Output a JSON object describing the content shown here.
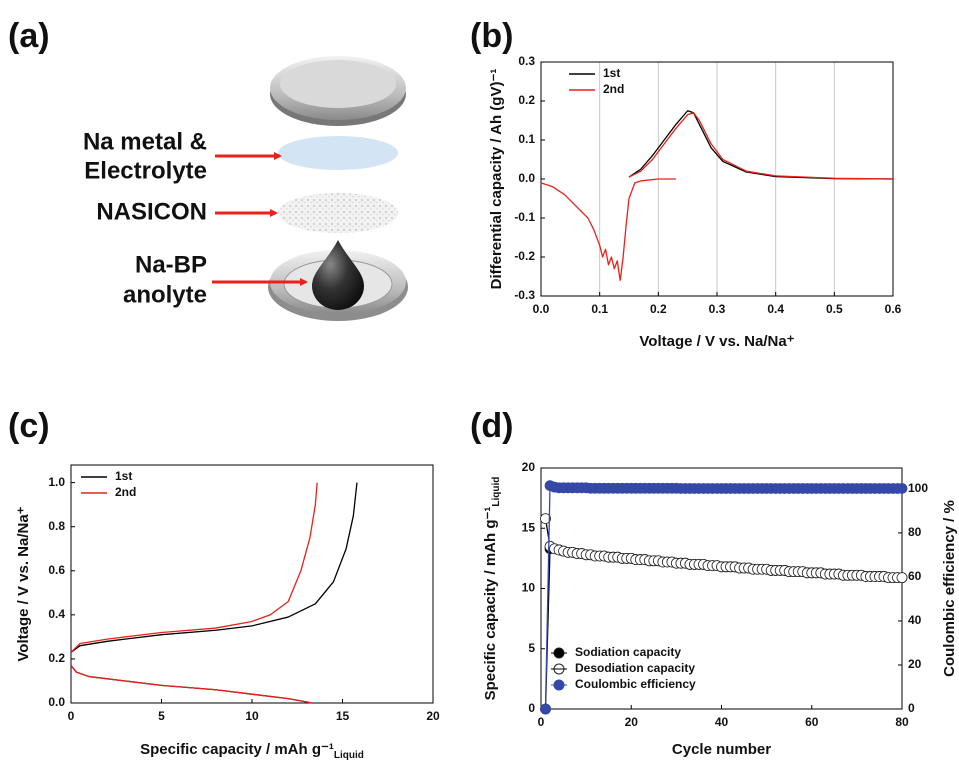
{
  "panel_labels": [
    "(a)",
    "(b)",
    "(c)",
    "(d)"
  ],
  "diagram": {
    "labels": [
      [
        "Na metal &",
        "Electrolyte"
      ],
      [
        "NASICON"
      ],
      [
        "Na-BP",
        "anolyte"
      ]
    ]
  },
  "chart_data": [
    {
      "type": "line",
      "xlabel": "Voltage / V vs. Na/Na⁺",
      "ylabel": "Differential capacity / Ah (gV)⁻¹",
      "xlim": [
        0,
        0.6
      ],
      "ylim": [
        -0.3,
        0.3
      ],
      "xticks": [
        {
          "value": 0,
          "label": "0.0"
        },
        0.1,
        0.2,
        0.3,
        0.4,
        0.5,
        0.6
      ],
      "yticks": [
        -0.3,
        -0.2,
        -0.1,
        {
          "value": 0,
          "label": "0.0"
        },
        0.1,
        0.2,
        0.3
      ],
      "grid": "x",
      "legend": "upper left",
      "series": [
        {
          "name": "1st",
          "color": "#000000",
          "x": [
            0.15,
            0.17,
            0.19,
            0.21,
            0.23,
            0.25,
            0.26,
            0.27,
            0.29,
            0.31,
            0.35,
            0.4,
            0.5,
            0.6
          ],
          "values": [
            0.005,
            0.025,
            0.06,
            0.1,
            0.14,
            0.175,
            0.17,
            0.14,
            0.08,
            0.045,
            0.018,
            0.006,
            0.001,
            0.0
          ]
        },
        {
          "name": "2nd",
          "color": "#e8211b",
          "x": [
            0,
            0.02,
            0.04,
            0.06,
            0.08,
            0.09,
            0.1,
            0.105,
            0.11,
            0.115,
            0.12,
            0.125,
            0.13,
            0.135,
            0.14,
            0.145,
            0.15,
            0.16,
            0.17,
            0.2,
            0.23,
            null,
            0.15,
            0.17,
            0.19,
            0.21,
            0.23,
            0.25,
            0.26,
            0.27,
            0.29,
            0.31,
            0.35,
            0.4,
            0.5,
            0.6
          ],
          "values": [
            -0.01,
            -0.02,
            -0.04,
            -0.07,
            -0.1,
            -0.13,
            -0.17,
            -0.2,
            -0.18,
            -0.22,
            -0.2,
            -0.23,
            -0.21,
            -0.26,
            -0.2,
            -0.12,
            -0.05,
            -0.01,
            -0.005,
            0,
            0,
            null,
            0.005,
            0.02,
            0.05,
            0.09,
            0.13,
            0.165,
            0.17,
            0.15,
            0.09,
            0.05,
            0.02,
            0.008,
            0.002,
            0.0
          ]
        }
      ]
    },
    {
      "type": "line",
      "xlabel": "Specific capacity / mAh g⁻¹",
      "xlabel_sub": "Liquid",
      "ylabel": "Voltage / V vs. Na/Na⁺",
      "xlim": [
        0,
        20
      ],
      "ylim": [
        0,
        1.08
      ],
      "xticks": [
        0,
        5,
        10,
        15,
        20
      ],
      "yticks": [
        {
          "value": 0,
          "label": "0.0"
        },
        0.2,
        0.4,
        0.6,
        0.8,
        {
          "value": 1,
          "label": "1.0"
        }
      ],
      "legend": "upper left",
      "series": [
        {
          "name": "1st",
          "color": "#000000",
          "x": [
            0,
            0.5,
            2,
            5,
            8,
            10,
            12,
            13.5,
            14.5,
            15.2,
            15.6,
            15.8,
            null,
            0,
            0.3,
            1,
            3,
            5,
            8,
            10,
            12,
            13,
            13.3
          ],
          "values": [
            0.23,
            0.26,
            0.28,
            0.31,
            0.33,
            0.35,
            0.39,
            0.45,
            0.55,
            0.7,
            0.85,
            1.0,
            null,
            0.17,
            0.14,
            0.12,
            0.1,
            0.08,
            0.06,
            0.04,
            0.02,
            0.005,
            0
          ]
        },
        {
          "name": "2nd",
          "color": "#e8211b",
          "x": [
            0,
            0.5,
            2,
            5,
            8,
            10,
            11,
            12,
            12.7,
            13.2,
            13.5,
            13.6,
            null,
            0,
            0.3,
            1,
            3,
            5,
            8,
            10,
            12,
            13,
            13.3
          ],
          "values": [
            0.23,
            0.27,
            0.29,
            0.32,
            0.34,
            0.37,
            0.4,
            0.46,
            0.6,
            0.75,
            0.9,
            1.0,
            null,
            0.17,
            0.14,
            0.12,
            0.1,
            0.08,
            0.06,
            0.04,
            0.02,
            0.005,
            0
          ]
        }
      ]
    },
    {
      "type": "line",
      "xlabel": "Cycle number",
      "ylabel": "Specific capacity / mAh g⁻¹",
      "ylabel_sub": "Liquid",
      "y2label": "Coulombic efficiency / %",
      "xlim": [
        0,
        80
      ],
      "ylim": [
        0,
        20
      ],
      "y2lim": [
        0,
        109.5
      ],
      "xticks": [
        0,
        20,
        40,
        60,
        80
      ],
      "yticks": [
        0,
        5,
        10,
        15,
        20
      ],
      "y2ticks": [
        0,
        20,
        40,
        60,
        80,
        100
      ],
      "legend": "lower left",
      "x": [
        1,
        2,
        3,
        4,
        5,
        6,
        7,
        8,
        9,
        10,
        11,
        12,
        13,
        14,
        15,
        16,
        17,
        18,
        19,
        20,
        21,
        22,
        23,
        24,
        25,
        26,
        27,
        28,
        29,
        30,
        31,
        32,
        33,
        34,
        35,
        36,
        37,
        38,
        39,
        40,
        41,
        42,
        43,
        44,
        45,
        46,
        47,
        48,
        49,
        50,
        51,
        52,
        53,
        54,
        55,
        56,
        57,
        58,
        59,
        60,
        61,
        62,
        63,
        64,
        65,
        66,
        67,
        68,
        69,
        70,
        71,
        72,
        73,
        74,
        75,
        76,
        77,
        78,
        79,
        80
      ],
      "series": [
        {
          "name": "Sodiation capacity",
          "color": "#000000",
          "marker": "filled",
          "values": [
            0,
            13.3,
            13.3,
            13.2,
            13.1,
            13.0,
            13.0,
            12.9,
            12.9,
            12.8,
            12.8,
            12.7,
            12.7,
            12.7,
            12.6,
            12.6,
            12.6,
            12.5,
            12.5,
            12.5,
            12.4,
            12.4,
            12.4,
            12.3,
            12.3,
            12.3,
            12.2,
            12.2,
            12.2,
            12.1,
            12.1,
            12.1,
            12.0,
            12.0,
            12.0,
            12.0,
            11.9,
            11.9,
            11.9,
            11.8,
            11.8,
            11.8,
            11.8,
            11.7,
            11.7,
            11.7,
            11.6,
            11.6,
            11.6,
            11.6,
            11.5,
            11.5,
            11.5,
            11.5,
            11.4,
            11.4,
            11.4,
            11.4,
            11.3,
            11.3,
            11.3,
            11.3,
            11.2,
            11.2,
            11.2,
            11.2,
            11.1,
            11.1,
            11.1,
            11.1,
            11.1,
            11.0,
            11.0,
            11.0,
            11.0,
            11.0,
            10.9,
            10.9,
            10.9,
            10.9
          ]
        },
        {
          "name": "Desodiation capacity",
          "color": "#000000",
          "marker": "open",
          "values": [
            15.8,
            13.5,
            13.3,
            13.2,
            13.1,
            13.0,
            13.0,
            12.9,
            12.9,
            12.8,
            12.8,
            12.7,
            12.7,
            12.7,
            12.6,
            12.6,
            12.6,
            12.5,
            12.5,
            12.5,
            12.4,
            12.4,
            12.4,
            12.3,
            12.3,
            12.3,
            12.2,
            12.2,
            12.2,
            12.1,
            12.1,
            12.1,
            12.0,
            12.0,
            12.0,
            12.0,
            11.9,
            11.9,
            11.9,
            11.8,
            11.8,
            11.8,
            11.8,
            11.7,
            11.7,
            11.7,
            11.6,
            11.6,
            11.6,
            11.6,
            11.5,
            11.5,
            11.5,
            11.5,
            11.4,
            11.4,
            11.4,
            11.4,
            11.3,
            11.3,
            11.3,
            11.3,
            11.2,
            11.2,
            11.2,
            11.2,
            11.1,
            11.1,
            11.1,
            11.1,
            11.1,
            11.0,
            11.0,
            11.0,
            11.0,
            11.0,
            10.9,
            10.9,
            10.9,
            10.9
          ]
        },
        {
          "name": "Coulombic efficiency",
          "color": "#3548a8",
          "marker": "filled",
          "axis": "y2",
          "values": [
            0,
            101.5,
            100.8,
            100.5,
            100.5,
            100.5,
            100.5,
            100.5,
            100.5,
            100.5,
            100.3,
            100.3,
            100.3,
            100.3,
            100.3,
            100.3,
            100.3,
            100.3,
            100.3,
            100.3,
            100.3,
            100.3,
            100.3,
            100.3,
            100.3,
            100.3,
            100.3,
            100.3,
            100.3,
            100.3,
            100.2,
            100.2,
            100.2,
            100.2,
            100.2,
            100.2,
            100.2,
            100.2,
            100.2,
            100.2,
            100.2,
            100.2,
            100.2,
            100.2,
            100.2,
            100.2,
            100.2,
            100.2,
            100.2,
            100.2,
            100.2,
            100.2,
            100.2,
            100.2,
            100.2,
            100.2,
            100.2,
            100.2,
            100.2,
            100.2,
            100.2,
            100.2,
            100.2,
            100.2,
            100.2,
            100.2,
            100.2,
            100.2,
            100.2,
            100.2,
            100.2,
            100.2,
            100.2,
            100.2,
            100.2,
            100.2,
            100.2,
            100.2,
            100.2,
            100.2
          ]
        }
      ]
    }
  ]
}
